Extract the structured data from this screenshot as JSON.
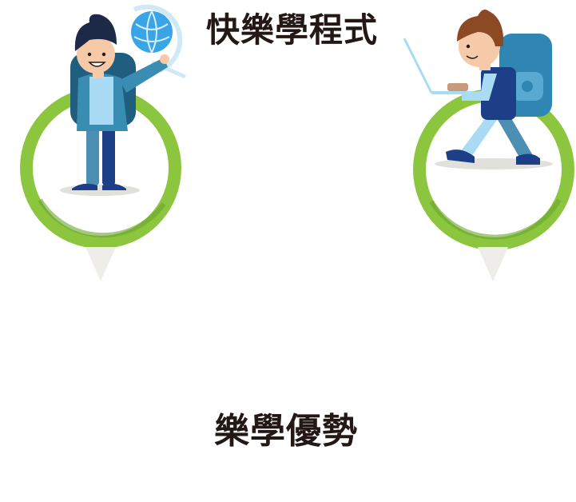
{
  "headings": {
    "top": "快樂學程式",
    "bottom": "樂學優勢"
  },
  "illustrations": {
    "left": {
      "icon": "kid-with-globe-icon",
      "ring_color": "#8cc63f",
      "pointer_color": "#efedea"
    },
    "right": {
      "icon": "kid-with-laptop-icon",
      "ring_color": "#8cc63f",
      "pointer_color": "#efedea"
    }
  },
  "colors": {
    "heading_text": "#231815",
    "background": "#ffffff"
  }
}
